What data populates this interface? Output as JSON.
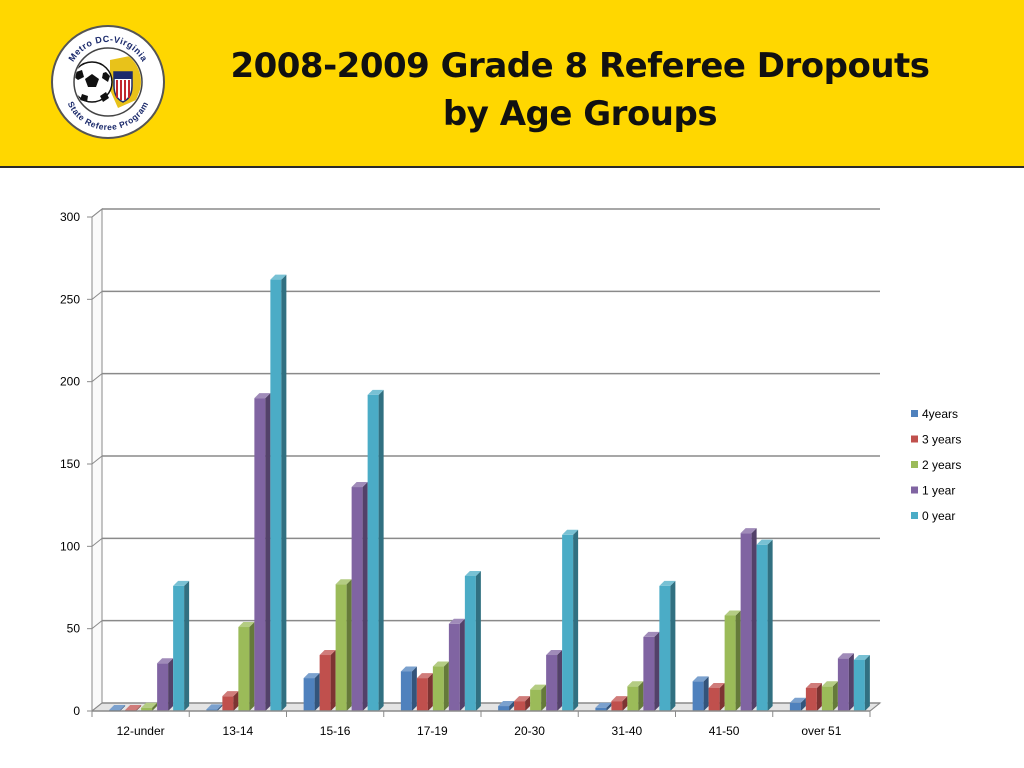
{
  "header": {
    "title_line1": "2008-2009 Grade 8 Referee Dropouts",
    "title_line2": "by Age Groups",
    "logo": {
      "top_text": "Metro DC-Virginia",
      "bottom_text": "State Referee Program",
      "icon": "soccer-ball-and-shield-icon"
    }
  },
  "colors": {
    "header_bg": "#ffd700"
  },
  "chart_data": {
    "type": "bar",
    "categories": [
      "12-under",
      "13-14",
      "15-16",
      "17-19",
      "20-30",
      "31-40",
      "41-50",
      "over 51"
    ],
    "series": [
      {
        "name": "4years",
        "color": "#4f81bd",
        "values": [
          0,
          1,
          20,
          24,
          3,
          2,
          18,
          5
        ]
      },
      {
        "name": "3 years",
        "color": "#c0504d",
        "values": [
          0,
          9,
          34,
          20,
          6,
          6,
          14,
          14
        ]
      },
      {
        "name": "2 years",
        "color": "#9bbb59",
        "values": [
          2,
          51,
          77,
          27,
          13,
          15,
          58,
          15
        ]
      },
      {
        "name": "1 year",
        "color": "#8064a2",
        "values": [
          29,
          190,
          136,
          53,
          34,
          45,
          108,
          32
        ]
      },
      {
        "name": "0 year",
        "color": "#4bacc6",
        "values": [
          76,
          262,
          192,
          82,
          107,
          76,
          101,
          31
        ]
      }
    ],
    "ylim": [
      0,
      300
    ],
    "yticks": [
      0,
      50,
      100,
      150,
      200,
      250,
      300
    ],
    "grid": true,
    "legend": "right",
    "style": "3d-clustered-column"
  }
}
